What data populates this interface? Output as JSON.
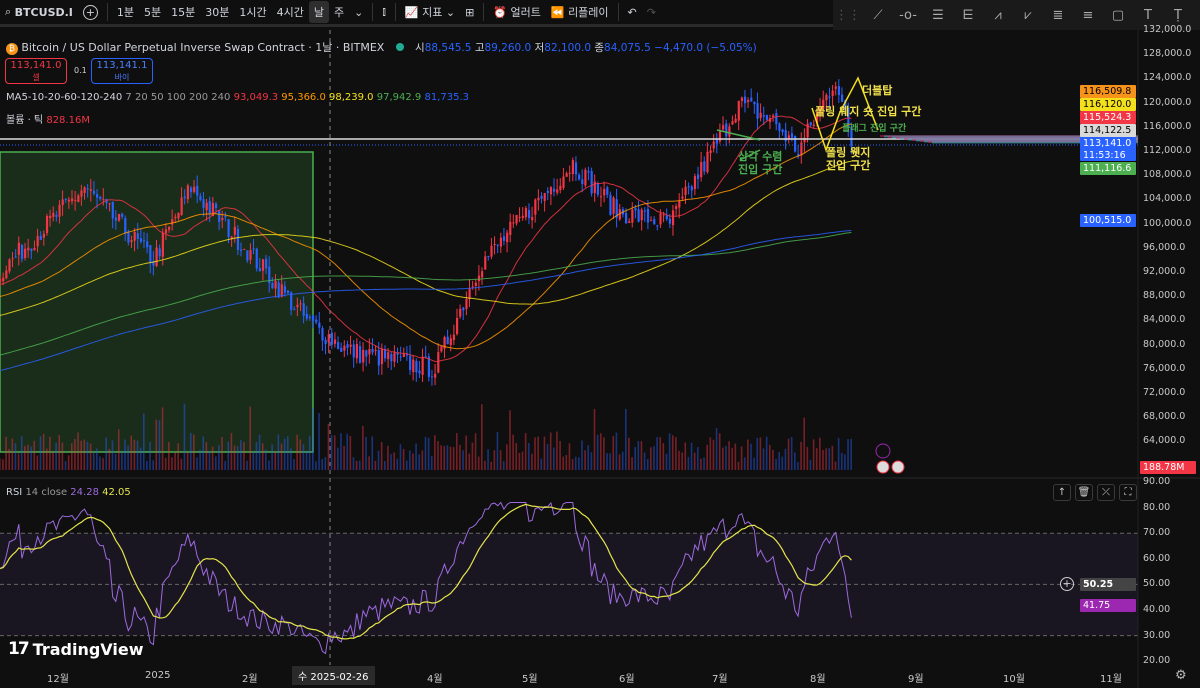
{
  "toolbar": {
    "symbol": "BTCUSD.I",
    "intervals": [
      "1분",
      "5분",
      "15분",
      "30분",
      "1시간",
      "4시간",
      "날",
      "주"
    ],
    "active_interval": "날",
    "indicators": "지표",
    "alert": "얼러트",
    "replay": "리플레이"
  },
  "drawing_tools": [
    "trend-line",
    "horizontal-ray",
    "parallel-channel",
    "pitchfork",
    "xabcd-pattern",
    "abcd-pattern",
    "fib-retracement",
    "fib-extension",
    "rectangle",
    "text",
    "anchored-text"
  ],
  "legend": {
    "title": "Bitcoin / US Dollar Perpetual Inverse Swap Contract · 1날 · BITMEX",
    "o_label": "시",
    "o": "88,545.5",
    "h_label": "고",
    "h": "89,260.0",
    "l_label": "저",
    "l": "82,100.0",
    "c_label": "종",
    "c": "84,075.5",
    "change": "−4,470.0 (−5.05%)",
    "sell_price": "113,141.0",
    "sell_label": "셀",
    "spread": "0.1",
    "buy_price": "113,141.1",
    "buy_label": "바이",
    "ma_name": "MA5-10-20-60-120-240",
    "ma_params": "7 20 50 100 200 240",
    "ma_values": [
      "93,049.3",
      "95,366.0",
      "98,239.0",
      "97,942.9",
      "81,735.3"
    ],
    "volume_name": "볼륨 · 틱",
    "volume_value": "828.16M"
  },
  "price_axis": [
    "132,000.0",
    "128,000.0",
    "124,000.0",
    "120,000.0",
    "116,000.0",
    "112,000.0",
    "108,000.0",
    "104,000.0",
    "100,000.0",
    "96,000.0",
    "92,000.0",
    "88,000.0",
    "84,000.0",
    "80,000.0",
    "76,000.0",
    "72,000.0",
    "68,000.0",
    "64,000.0"
  ],
  "price_tags": [
    {
      "v": "116,509.8",
      "bg": "#f7931a",
      "fg": "#000"
    },
    {
      "v": "116,120.0",
      "bg": "#f5e11b",
      "fg": "#000"
    },
    {
      "v": "115,524.3",
      "bg": "#f23645",
      "fg": "#fff"
    },
    {
      "v": "114,122.5",
      "bg": "#d9d9d9",
      "fg": "#000"
    },
    {
      "v": "113,141.0",
      "bg": "#2962ff",
      "fg": "#fff"
    },
    {
      "v": "11:53:16",
      "bg": "#2962ff",
      "fg": "#fff"
    },
    {
      "v": "111,116.6",
      "bg": "#4caf50",
      "fg": "#fff"
    },
    {
      "v": "100,515.0",
      "bg": "#2962ff",
      "fg": "#fff"
    },
    {
      "v": "188.78M",
      "bg": "#f23645",
      "fg": "#fff"
    }
  ],
  "annotations": {
    "double_top": "더블탑",
    "rising_wedge": "폴링 웨지 숏 진입 구간",
    "flag": "플래그 진입 구간",
    "falling_wedge_1": "폴링 웻지",
    "falling_wedge_2": "진입 구간",
    "triangle_1": "삼각 수렴",
    "triangle_2": "진입 구간"
  },
  "rsi": {
    "name": "RSI",
    "params": "14 close",
    "value": "24.28",
    "ma": "42.05",
    "axis": [
      "90.00",
      "80.00",
      "70.00",
      "60.00",
      "50.00",
      "40.00",
      "30.00",
      "20.00"
    ],
    "tag_rsi": "41.75",
    "tag_cross": "50.25"
  },
  "time_axis": [
    {
      "l": "12월",
      "x": 55
    },
    {
      "l": "2025",
      "x": 153
    },
    {
      "l": "2월",
      "x": 250
    },
    {
      "l": "4월",
      "x": 435
    },
    {
      "l": "5월",
      "x": 530
    },
    {
      "l": "6월",
      "x": 627
    },
    {
      "l": "7월",
      "x": 720
    },
    {
      "l": "8월",
      "x": 818
    },
    {
      "l": "9월",
      "x": 916
    },
    {
      "l": "10월",
      "x": 1011
    },
    {
      "l": "11월",
      "x": 1108
    }
  ],
  "crosshair_date": "수 2025-02-26",
  "brand": "TradingView",
  "colors": {
    "up": "#f23645",
    "down": "#2962ff",
    "ma": [
      "#f23645",
      "#ff9800",
      "#f5e11b",
      "#4caf50",
      "#2962ff"
    ]
  },
  "chart_data": {
    "type": "candlestick",
    "timeframe": "1D",
    "waypoints": [
      [
        "2024-11-20",
        92000
      ],
      [
        "2024-12-17",
        106000
      ],
      [
        "2025-01-08",
        94000
      ],
      [
        "2025-01-20",
        106000
      ],
      [
        "2025-02-03",
        98000
      ],
      [
        "2025-02-26",
        84000
      ],
      [
        "2025-03-11",
        79000
      ],
      [
        "2025-04-08",
        76000
      ],
      [
        "2025-04-22",
        93000
      ],
      [
        "2025-05-22",
        110000
      ],
      [
        "2025-06-05",
        102000
      ],
      [
        "2025-06-22",
        100000
      ],
      [
        "2025-07-10",
        116000
      ],
      [
        "2025-07-14",
        120000
      ],
      [
        "2025-07-25",
        117000
      ],
      [
        "2025-08-02",
        112000
      ],
      [
        "2025-08-14",
        124000
      ],
      [
        "2025-08-19",
        113141
      ]
    ]
  }
}
